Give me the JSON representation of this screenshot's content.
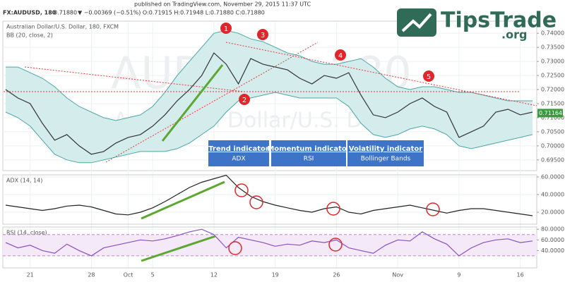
{
  "header": {
    "published": "published on TradingView.com, November 29, 2015 11:37 UTC",
    "symbol": "FX:AUDUSD, 180",
    "quote": "▼ −0.00369 (−0.51%) O:0.71915 H:0.71948 L:0.71880 C:0.71880",
    "last": "0.71880"
  },
  "logo": {
    "name": "TipsTrade",
    "domain": ".org"
  },
  "watermark": {
    "ticker": "AUDUSD, 180",
    "name": "Australian Dollar/U.S. Dollar"
  },
  "markers": [
    "1",
    "2",
    "3",
    "4",
    "5"
  ],
  "boxes": [
    {
      "title": "Trend indicator",
      "text": "ADX"
    },
    {
      "title": "Momentum indicator",
      "text": "RSI"
    },
    {
      "title": "Volatility indicator",
      "text": "Bollinger Bands"
    }
  ],
  "chart_data": [
    {
      "type": "line",
      "title": "Australian Dollar/U.S. Dollar, 180, FXCM",
      "subtitle": "BB (20, close, 2)",
      "categories": [
        null,
        null,
        "21",
        null,
        null,
        null,
        null,
        "28",
        null,
        null,
        "Oct",
        null,
        "5",
        null,
        null,
        null,
        null,
        "12",
        null,
        null,
        null,
        null,
        "19",
        null,
        null,
        null,
        null,
        "26",
        null,
        null,
        null,
        null,
        "Nov",
        null,
        null,
        null,
        null,
        "9",
        null,
        null,
        null,
        null,
        "16",
        null
      ],
      "series": [
        {
          "name": "Upper band",
          "color": "#4aa6a8",
          "values": [
            0.728,
            0.728,
            0.726,
            0.724,
            0.721,
            0.717,
            0.714,
            0.712,
            0.71,
            0.709,
            0.71,
            0.711,
            0.714,
            0.719,
            0.725,
            0.73,
            0.735,
            0.74,
            0.741,
            0.74,
            0.738,
            0.737,
            0.735,
            0.733,
            0.732,
            0.73,
            0.729,
            0.729,
            0.73,
            0.731,
            0.728,
            0.724,
            0.721,
            0.72,
            0.721,
            0.721,
            0.72,
            0.719,
            0.719,
            0.718,
            0.717,
            0.716,
            0.716,
            0.716
          ]
        },
        {
          "name": "Lower band",
          "color": "#4aa6a8",
          "values": [
            0.712,
            0.71,
            0.707,
            0.702,
            0.697,
            0.695,
            0.694,
            0.694,
            0.695,
            0.696,
            0.697,
            0.698,
            0.698,
            0.698,
            0.699,
            0.701,
            0.704,
            0.707,
            0.712,
            0.716,
            0.717,
            0.718,
            0.719,
            0.718,
            0.717,
            0.717,
            0.717,
            0.717,
            0.714,
            0.708,
            0.704,
            0.703,
            0.704,
            0.706,
            0.707,
            0.706,
            0.704,
            0.7,
            0.699,
            0.7,
            0.701,
            0.702,
            0.703,
            0.704
          ]
        },
        {
          "name": "Close",
          "color": "#333333",
          "values": [
            0.72,
            0.717,
            0.715,
            0.708,
            0.702,
            0.704,
            0.7,
            0.697,
            0.698,
            0.701,
            0.703,
            0.704,
            0.707,
            0.711,
            0.716,
            0.72,
            0.725,
            0.733,
            0.729,
            0.722,
            0.731,
            0.729,
            0.728,
            0.727,
            0.724,
            0.722,
            0.725,
            0.724,
            0.726,
            0.718,
            0.711,
            0.71,
            0.712,
            0.715,
            0.717,
            0.714,
            0.712,
            0.703,
            0.705,
            0.707,
            0.712,
            0.713,
            0.711,
            0.712
          ]
        }
      ],
      "band_fill": "#d4ecec",
      "last_price": {
        "value": 0.71164,
        "label": "0.71164"
      },
      "ylim": [
        0.6912,
        0.7443
      ],
      "yticks": [
        {
          "value": 0.695,
          "label": "0.69500"
        },
        {
          "value": 0.7,
          "label": "0.70000"
        },
        {
          "value": 0.705,
          "label": "0.70500"
        },
        {
          "value": 0.71,
          "label": "0.71000"
        },
        {
          "value": 0.715,
          "label": "0.71500"
        },
        {
          "value": 0.72,
          "label": "0.72000"
        },
        {
          "value": 0.725,
          "label": "0.72500"
        },
        {
          "value": 0.73,
          "label": "0.73000"
        },
        {
          "value": 0.735,
          "label": "0.73500"
        },
        {
          "value": 0.74,
          "label": "0.74000"
        }
      ],
      "grid": true
    },
    {
      "type": "line",
      "title": "ADX (14, 14)",
      "series": [
        {
          "name": "ADX",
          "color": "#222222",
          "values": [
            28,
            26,
            24,
            22,
            24,
            27,
            28,
            26,
            22,
            18,
            17,
            20,
            25,
            32,
            40,
            48,
            54,
            58,
            62,
            48,
            38,
            32,
            28,
            25,
            22,
            20,
            24,
            26,
            20,
            18,
            22,
            24,
            26,
            28,
            25,
            22,
            19,
            22,
            24,
            24,
            22,
            20,
            18,
            16
          ]
        }
      ],
      "ylim": [
        6.4,
        62.4
      ],
      "yticks": [
        {
          "value": 20,
          "label": "20.0000"
        },
        {
          "value": 40,
          "label": "40.0000"
        },
        {
          "value": 60,
          "label": "60.0000"
        }
      ],
      "grid": true
    },
    {
      "type": "line",
      "title": "RSI (14, close)",
      "series": [
        {
          "name": "RSI",
          "color": "#8a4fbf",
          "values": [
            55,
            45,
            50,
            40,
            35,
            52,
            40,
            30,
            45,
            50,
            55,
            60,
            58,
            62,
            68,
            75,
            80,
            70,
            45,
            65,
            60,
            55,
            48,
            52,
            50,
            58,
            55,
            60,
            45,
            40,
            35,
            50,
            60,
            58,
            75,
            62,
            52,
            30,
            45,
            55,
            60,
            62,
            55,
            58
          ]
        }
      ],
      "band": [
        30,
        70
      ],
      "band_fill": "#f5e8f8",
      "ylim": [
        7.4,
        84.2
      ],
      "yticks": [
        {
          "value": 40,
          "label": "40.0000"
        },
        {
          "value": 60,
          "label": "60.0000"
        },
        {
          "value": 80,
          "label": "80.0000"
        }
      ],
      "grid": true
    }
  ]
}
